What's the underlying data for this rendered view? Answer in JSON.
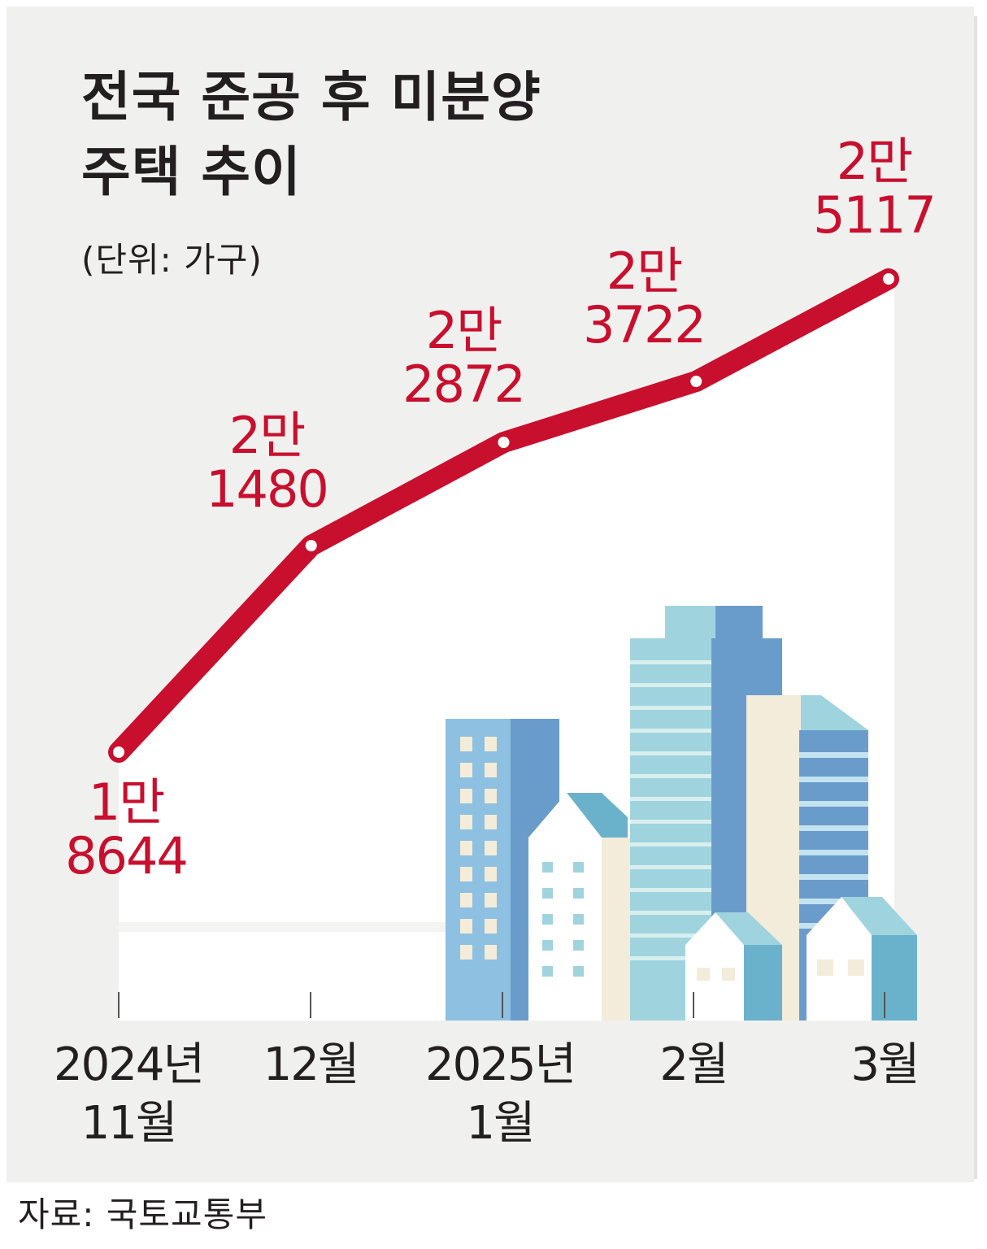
{
  "chart_data": {
    "type": "line",
    "title": "전국 준공 후 미분양\n주택 추이",
    "subtitle": "(단위: 가구)",
    "source": "자료: 국토교통부",
    "categories": [
      [
        "2024년",
        "11월"
      ],
      [
        "12월"
      ],
      [
        "2025년",
        "1월"
      ],
      [
        "2월"
      ],
      [
        "3월"
      ]
    ],
    "series": [
      {
        "values": [
          18644,
          21480,
          22872,
          23722,
          25117
        ],
        "labels": [
          [
            "1만",
            "8644"
          ],
          [
            "2만",
            "1480"
          ],
          [
            "2만",
            "2872"
          ],
          [
            "2만",
            "3722"
          ],
          [
            "2만",
            "5117"
          ]
        ],
        "color": "#c8102e"
      }
    ],
    "grid": false,
    "legend": "none"
  },
  "colors": {
    "background": "#f0f0ef",
    "plot_area": "#ffffff",
    "line": "#c8102e",
    "text": "#231f20"
  }
}
